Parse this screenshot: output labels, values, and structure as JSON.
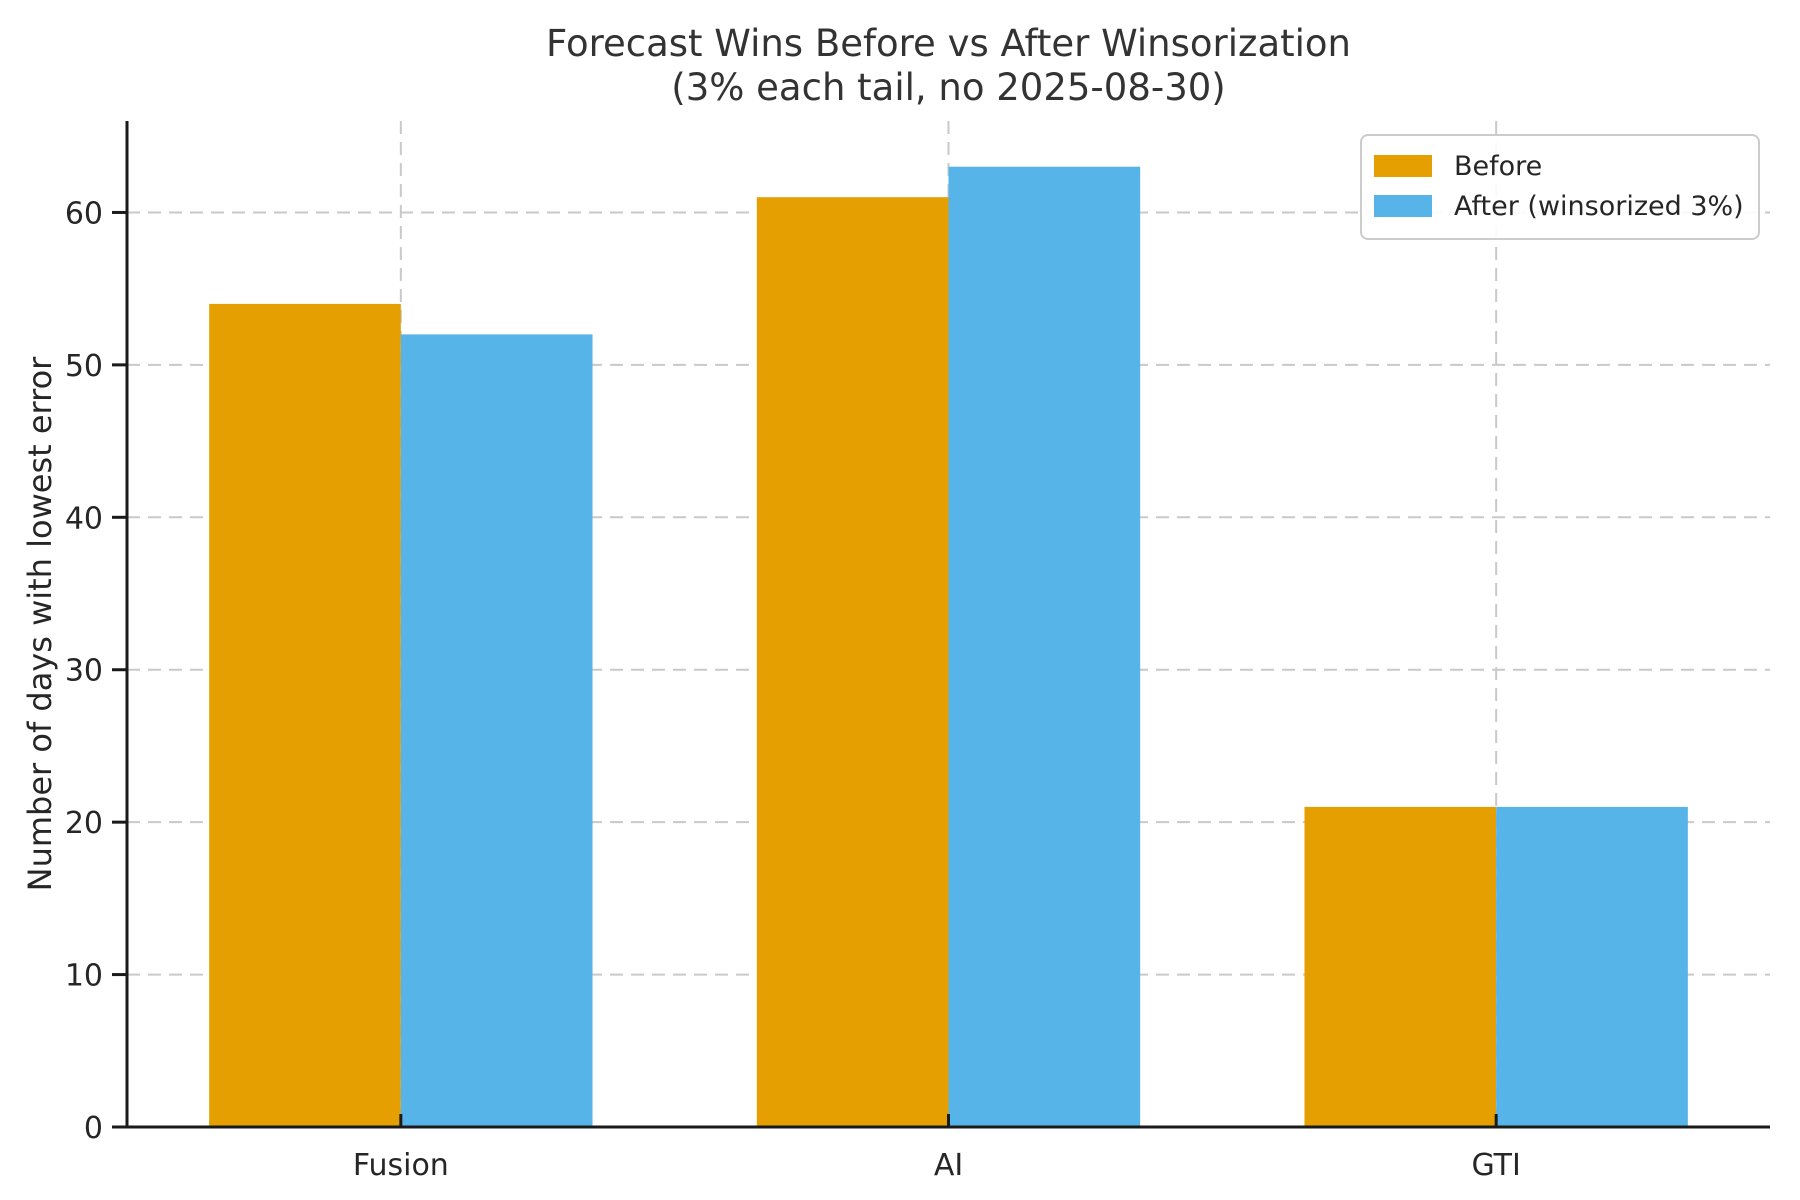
{
  "chart_data": {
    "type": "bar",
    "title": "Forecast Wins Before vs After Winsorization",
    "subtitle": "(3% each tail, no 2025-08-30)",
    "categories": [
      "Fusion",
      "AI",
      "GTI"
    ],
    "series": [
      {
        "name": "Before",
        "color": "#E69F00",
        "values": [
          54,
          61,
          21
        ]
      },
      {
        "name": "After (winsorized 3%)",
        "color": "#56B4E9",
        "values": [
          52,
          63,
          21
        ]
      }
    ],
    "xlabel": "",
    "ylabel": "Number of days with lowest error",
    "ylim": [
      0,
      66
    ],
    "yticks": [
      0,
      10,
      20,
      30,
      40,
      50,
      60
    ],
    "grid": true,
    "legend_position": "upper right",
    "colors": {
      "axis": "#1a1a1a",
      "grid": "#c9c9c9",
      "tick_label": "#262626",
      "title_text": "#333333",
      "background": "#ffffff"
    }
  }
}
